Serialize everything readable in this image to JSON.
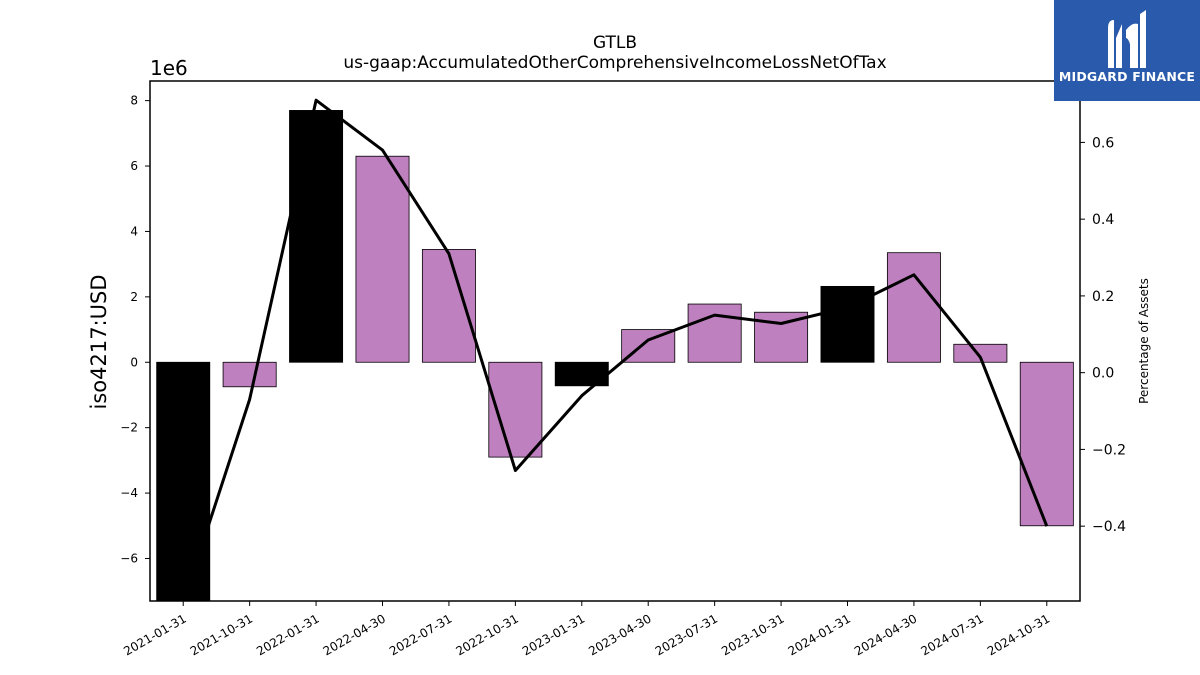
{
  "chart_data": {
    "type": "bar",
    "title": "GTLB",
    "subtitle": "us-gaap:AccumulatedOtherComprehensiveIncomeLossNetOfTax",
    "ylabel": "iso4217:USD",
    "y2label": "Percentage of Assets",
    "y_multiplier": "1e6",
    "categories": [
      "2021-01-31",
      "2021-10-31",
      "2022-01-31",
      "2022-04-30",
      "2022-07-31",
      "2022-10-31",
      "2023-01-31",
      "2023-04-30",
      "2023-07-31",
      "2023-10-31",
      "2024-01-31",
      "2024-04-30",
      "2024-07-31",
      "2024-10-31"
    ],
    "series": [
      {
        "values": [
          -7300000,
          -750000,
          7700000,
          6300000,
          3450000,
          -2900000,
          -720000,
          1000000,
          1780000,
          1530000,
          2320000,
          3350000,
          550000,
          -5000000
        ],
        "colors": [
          "#000000",
          "#bf80bf",
          "#000000",
          "#bf80bf",
          "#bf80bf",
          "#bf80bf",
          "#000000",
          "#bf80bf",
          "#bf80bf",
          "#bf80bf",
          "#000000",
          "#bf80bf",
          "#bf80bf",
          "#bf80bf"
        ]
      },
      {
        "axis": "right",
        "type": "line",
        "values": [
          -0.6,
          -0.07,
          0.71,
          0.58,
          0.31,
          -0.255,
          -0.06,
          0.085,
          0.15,
          0.128,
          0.17,
          0.255,
          0.04,
          -0.4
        ]
      }
    ],
    "ylim": [
      -7.3,
      8.6
    ],
    "yticks": [
      -6,
      -4,
      -2,
      0,
      2,
      4,
      6,
      8
    ],
    "y2lim": [
      -0.595,
      0.76
    ],
    "y2ticks": [
      -0.4,
      -0.2,
      0.0,
      0.2,
      0.4,
      0.6
    ],
    "y2ticklabels": [
      "−0.4",
      "−0.2",
      "0.0",
      "0.2",
      "0.4",
      "0.6"
    ],
    "yticklabels": [
      "−6",
      "−4",
      "−2",
      "0",
      "2",
      "4",
      "6",
      "8"
    ],
    "grid": false,
    "colors": {
      "bar_positive_change": "#bf80bf",
      "bar_highlight": "#000000",
      "line": "#000000"
    }
  },
  "logo": {
    "name": "MIDGARD FINANCE",
    "bg": "#2a5aab"
  }
}
